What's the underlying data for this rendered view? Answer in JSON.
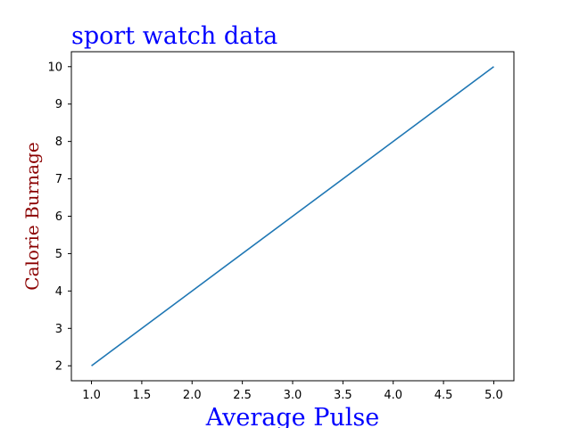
{
  "chart_data": {
    "type": "line",
    "title": "sport watch data",
    "xlabel": "Average Pulse",
    "ylabel": "Calorie Burnage",
    "xlim": [
      0.8,
      5.2
    ],
    "ylim": [
      1.6,
      10.4
    ],
    "xticks": [
      1.0,
      1.5,
      2.0,
      2.5,
      3.0,
      3.5,
      4.0,
      4.5,
      5.0
    ],
    "xtick_labels": [
      "1.0",
      "1.5",
      "2.0",
      "2.5",
      "3.0",
      "3.5",
      "4.0",
      "4.5",
      "5.0"
    ],
    "yticks": [
      2,
      3,
      4,
      5,
      6,
      7,
      8,
      9,
      10
    ],
    "ytick_labels": [
      "2",
      "3",
      "4",
      "5",
      "6",
      "7",
      "8",
      "9",
      "10"
    ],
    "grid": false,
    "series": [
      {
        "x": [
          1,
          2,
          3,
          4,
          5
        ],
        "y": [
          2,
          4,
          6,
          8,
          10
        ],
        "color": "#1f77b4"
      }
    ],
    "colors": {
      "title": "#0000ff",
      "xlabel": "#0000ff",
      "ylabel": "#8b0000"
    }
  }
}
